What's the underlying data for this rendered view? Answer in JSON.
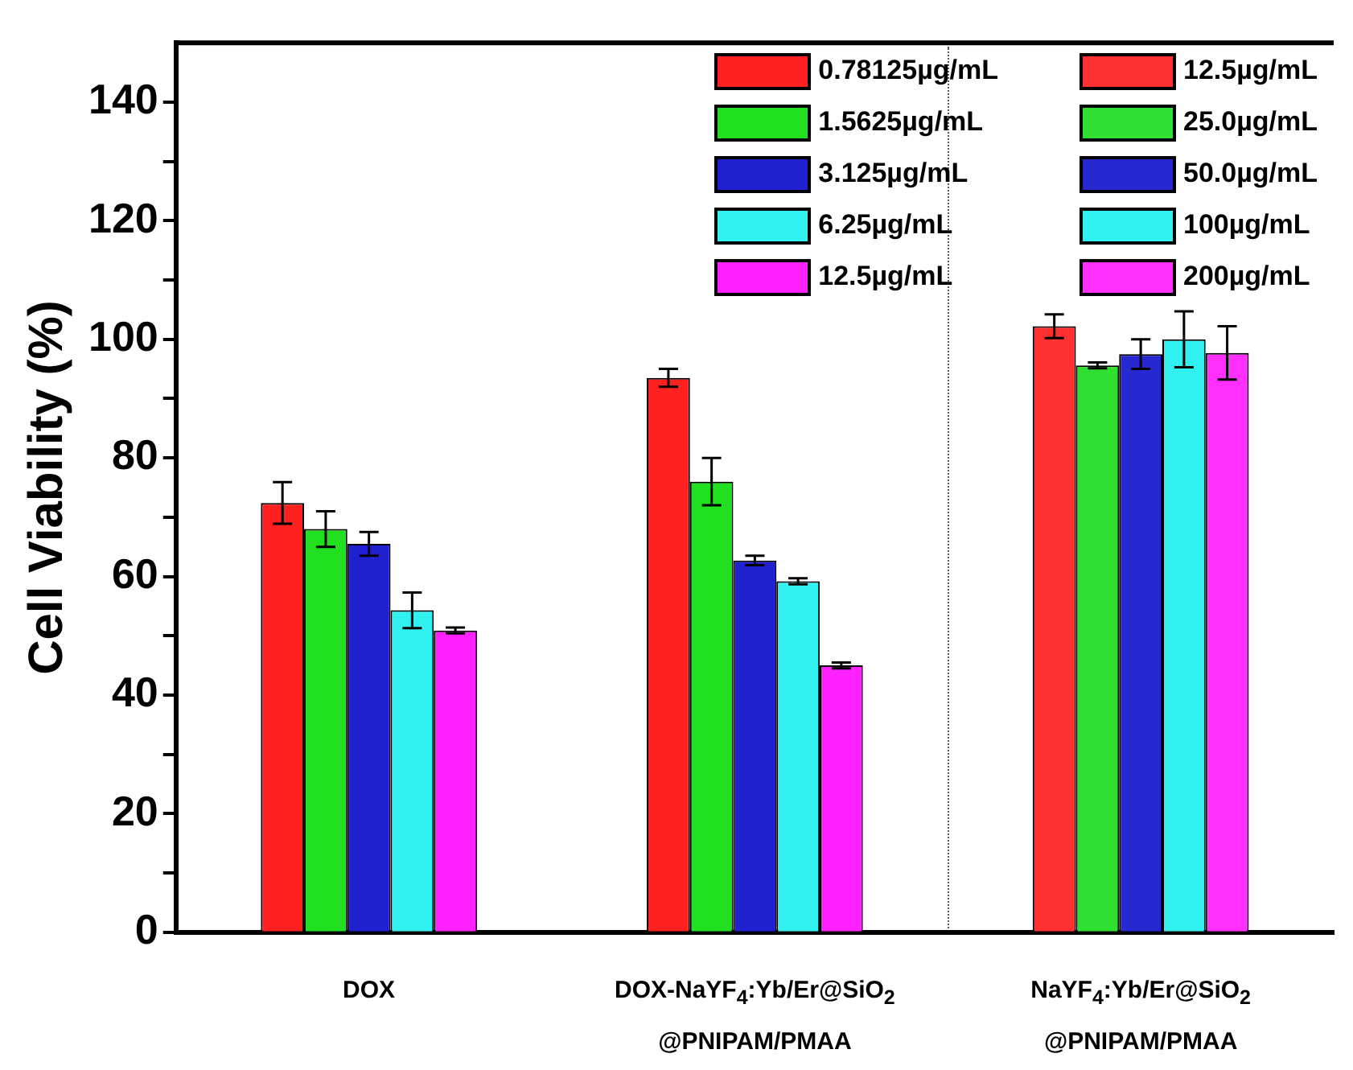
{
  "chart_data": {
    "type": "bar",
    "ylabel": "Cell Viability (%)",
    "categories": [
      "DOX",
      "DOX-NaYF$_{4}$:Yb/Er@SiO$_{2}$\n@PNIPAM/PMAA",
      "NaYF$_{4}$:Yb/Er@SiO$_{2}$\n@PNIPAM/PMAA"
    ],
    "ylim": [
      0,
      150
    ],
    "yticks": [
      0,
      {
        "value": 10,
        "label": null
      },
      20,
      {
        "value": 30,
        "label": null
      },
      40,
      {
        "value": 50,
        "label": null
      },
      60,
      {
        "value": 70,
        "label": null
      },
      80,
      {
        "value": 90,
        "label": null
      },
      100,
      {
        "value": 110,
        "label": null
      },
      120,
      {
        "value": 130,
        "label": null
      },
      140
    ],
    "grid": false,
    "legend": "top right",
    "series": [
      {
        "name": "0.78125µg/mL",
        "color": "#ff2020",
        "values": [
          72.4,
          93.5,
          null
        ],
        "errors": [
          3.5,
          1.5,
          null
        ]
      },
      {
        "name": "1.5625µg/mL",
        "color": "#20e020",
        "values": [
          68,
          76,
          null
        ],
        "errors": [
          3,
          4,
          null
        ]
      },
      {
        "name": "3.125µg/mL",
        "color": "#2020d0",
        "values": [
          65.5,
          62.7,
          null
        ],
        "errors": [
          2,
          0.8,
          null
        ]
      },
      {
        "name": "6.25µg/mL",
        "color": "#30f0f0",
        "values": [
          54.3,
          59.2,
          null
        ],
        "errors": [
          3,
          0.5,
          null
        ]
      },
      {
        "name": "12.5µg/mL",
        "color": "#ff20ff",
        "values": [
          50.9,
          45,
          null
        ],
        "errors": [
          0.5,
          0.5,
          null
        ]
      },
      {
        "name": "12.5µg/mL",
        "color": "#ff3030",
        "values": [
          null,
          null,
          102.2
        ],
        "errors": [
          null,
          null,
          2
        ]
      },
      {
        "name": "25.0µg/mL",
        "color": "#30e030",
        "values": [
          null,
          null,
          95.6
        ],
        "errors": [
          null,
          null,
          0.5
        ]
      },
      {
        "name": "50.0µg/mL",
        "color": "#2828d0",
        "values": [
          null,
          null,
          97.5
        ],
        "errors": [
          null,
          null,
          2.5
        ]
      },
      {
        "name": "100µg/mL",
        "color": "#30f0f0",
        "values": [
          null,
          null,
          100
        ],
        "errors": [
          null,
          null,
          4.7
        ]
      },
      {
        "name": "200µg/mL",
        "color": "#ff30ff",
        "values": [
          null,
          null,
          97.7
        ],
        "errors": [
          null,
          null,
          4.5
        ]
      }
    ]
  }
}
